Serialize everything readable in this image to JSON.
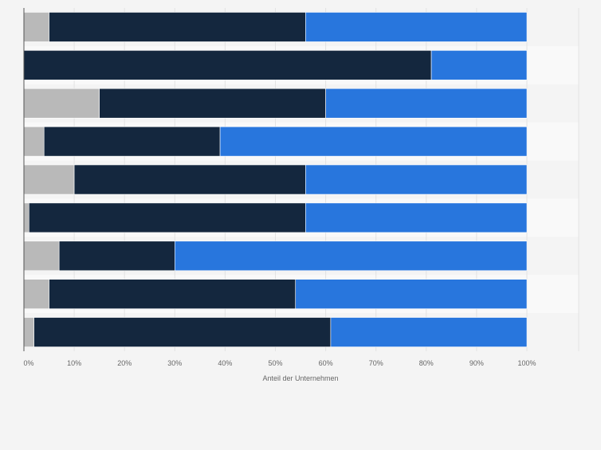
{
  "chart_data": {
    "type": "bar",
    "orientation": "horizontal",
    "stacked": true,
    "percent": true,
    "title": "",
    "xlabel": "Anteil der Unternehmen",
    "ylabel": "",
    "xlim": [
      0,
      100
    ],
    "x_ticks": [
      "0%",
      "10%",
      "20%",
      "30%",
      "40%",
      "50%",
      "60%",
      "70%",
      "80%",
      "90%",
      "100%"
    ],
    "grid": true,
    "legend": "none",
    "categories": [
      "",
      "",
      "",
      "",
      "",
      "",
      "",
      "",
      ""
    ],
    "series": [
      {
        "values": [
          5,
          0,
          15,
          4,
          10,
          1,
          7,
          5,
          2
        ]
      },
      {
        "values": [
          51,
          81,
          45,
          35,
          46,
          55,
          23,
          49,
          59
        ]
      },
      {
        "values": [
          44,
          19,
          40,
          61,
          44,
          44,
          70,
          46,
          39
        ]
      }
    ]
  },
  "colors": {
    "series": [
      "#b9b9b9",
      "#14273e",
      "#2876dd"
    ],
    "background": "#f4f4f4",
    "band": "#f9f9f9",
    "grid": "#e3e3e3",
    "axis": "#555555",
    "text": "#666666"
  }
}
